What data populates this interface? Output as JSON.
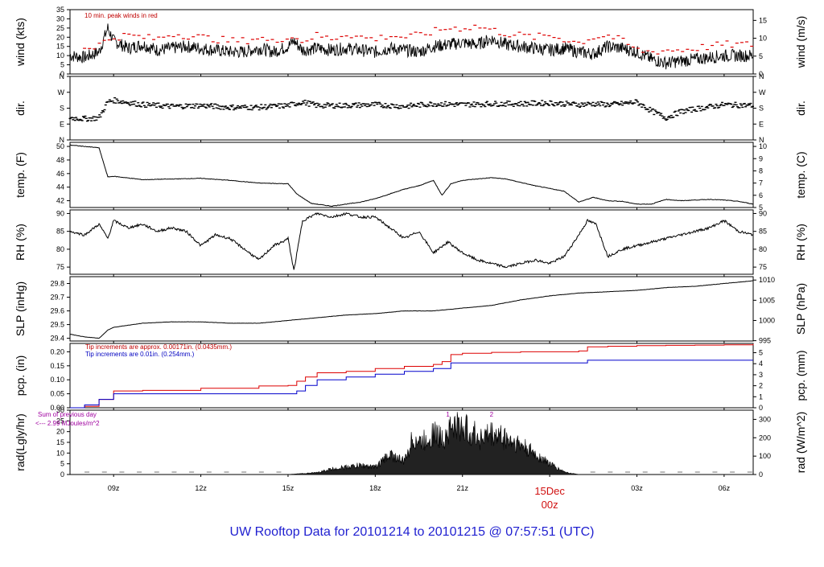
{
  "footer_title": "UW Rooftop Data for 20101214  to  20101215 @ 07:57:51  (UTC)",
  "date_label": "15Dec",
  "date_label_hour": "00z",
  "colors": {
    "wind_peak": "#dd0000",
    "precip_tip_small": "#dd0000",
    "precip_tip_large": "#0000cc",
    "annotation": "#a000a0",
    "footer": "#1f1fd0"
  },
  "time_axis": {
    "hours_span": [
      7.5,
      31.0
    ],
    "ticks": [
      {
        "hour": 9,
        "label": "09z"
      },
      {
        "hour": 12,
        "label": "12z"
      },
      {
        "hour": 15,
        "label": "15z"
      },
      {
        "hour": 18,
        "label": "18z"
      },
      {
        "hour": 21,
        "label": "21z"
      },
      {
        "hour": 24,
        "label": ""
      },
      {
        "hour": 27,
        "label": "03z"
      },
      {
        "hour": 30,
        "label": "06z"
      }
    ]
  },
  "chart_data": [
    {
      "type": "line",
      "id": "wind",
      "ylabel_left": "wind (kts)",
      "ylabel_right": "wind (m/s)",
      "annotation": "10 min. peak winds in red",
      "ylim": [
        0,
        35
      ],
      "yticks_left": [
        0,
        5,
        10,
        15,
        20,
        25,
        30,
        35
      ],
      "yticks_right": [
        0,
        5,
        10,
        15
      ],
      "series": [
        {
          "x": [
            7.5,
            8.0,
            8.5,
            8.8,
            9.0,
            9.5,
            10.0,
            10.5,
            11.0,
            11.5,
            12.0,
            12.5,
            13.0,
            13.5,
            14.0,
            14.5,
            15.0,
            15.2,
            15.5,
            16.0,
            16.5,
            17.0,
            17.5,
            18.0,
            18.5,
            19.0,
            19.5,
            20.0,
            20.5,
            21.0,
            21.5,
            22.0,
            22.5,
            23.0,
            23.5,
            24.0,
            24.5,
            25.0,
            25.5,
            26.0,
            26.5,
            27.0,
            27.5,
            28.0,
            28.5,
            29.0,
            29.5,
            30.0,
            30.5,
            31.0
          ],
          "values": [
            10,
            9,
            12,
            25,
            18,
            14,
            16,
            13,
            14,
            15,
            14,
            13,
            12,
            12,
            14,
            12,
            15,
            18,
            13,
            14,
            13,
            14,
            13,
            12,
            14,
            13,
            12,
            15,
            16,
            17,
            16,
            19,
            16,
            15,
            14,
            13,
            14,
            12,
            11,
            15,
            14,
            12,
            8,
            6,
            7,
            8,
            9,
            10,
            10,
            10
          ]
        },
        {
          "name": "10 min. peak winds",
          "x": [
            8.0,
            8.5,
            9.0,
            9.5,
            10.0,
            10.5,
            11.0,
            11.5,
            12.0,
            12.5,
            13.0,
            13.5,
            14.0,
            14.5,
            15.0,
            15.5,
            16.0,
            16.5,
            17.0,
            17.5,
            18.0,
            18.5,
            19.0,
            19.5,
            20.0,
            20.5,
            21.0,
            21.5,
            22.0,
            22.5,
            23.0,
            23.5,
            24.0,
            24.5,
            25.0,
            25.5,
            26.0,
            26.5,
            27.0,
            27.5,
            28.0,
            28.5,
            29.0,
            29.5,
            30.0,
            30.5,
            31.0
          ],
          "values": [
            14,
            16,
            20,
            21,
            20,
            19,
            22,
            21,
            20,
            19,
            18,
            18,
            20,
            17,
            21,
            18,
            21,
            19,
            22,
            20,
            19,
            21,
            20,
            21,
            23,
            25,
            25,
            26,
            24,
            22,
            21,
            20,
            21,
            19,
            17,
            20,
            21,
            18,
            13,
            12,
            13,
            13,
            14,
            15,
            16,
            16,
            16
          ]
        }
      ]
    },
    {
      "type": "scatter",
      "id": "dir",
      "ylabel_left": "dir.",
      "ylabel_right": "dir.",
      "yticks_left": [
        "N",
        "E",
        "S",
        "W",
        "N"
      ],
      "yticks_right": [
        "N",
        "E",
        "S",
        "W",
        "N"
      ],
      "ylim": [
        0,
        360
      ],
      "series": [
        {
          "x": [
            7.5,
            8.0,
            8.5,
            8.8,
            9.0,
            10.0,
            11.0,
            12.0,
            13.0,
            14.0,
            15.0,
            15.5,
            16.0,
            17.0,
            18.0,
            19.0,
            20.0,
            21.0,
            22.0,
            23.0,
            24.0,
            25.0,
            25.5,
            26.0,
            26.5,
            27.0,
            27.5,
            28.0,
            28.5,
            29.0,
            30.0,
            31.0
          ],
          "values": [
            125,
            120,
            125,
            215,
            225,
            200,
            190,
            195,
            185,
            185,
            195,
            215,
            195,
            195,
            200,
            190,
            205,
            200,
            205,
            205,
            210,
            200,
            205,
            200,
            205,
            215,
            165,
            125,
            160,
            175,
            200,
            195
          ]
        }
      ]
    },
    {
      "type": "line",
      "id": "temp",
      "ylabel_left": "temp. (F)",
      "ylabel_right": "temp. (C)",
      "ylim": [
        41,
        50.6
      ],
      "yticks_left": [
        42,
        44,
        46,
        48,
        50
      ],
      "yticks_right": [
        5,
        6,
        7,
        8,
        9,
        10
      ],
      "series": [
        {
          "x": [
            7.5,
            8.0,
            8.5,
            8.8,
            9.0,
            10.0,
            11.0,
            12.0,
            13.0,
            14.0,
            15.0,
            15.3,
            15.8,
            16.5,
            17.0,
            17.5,
            18.0,
            18.5,
            19.0,
            19.5,
            20.0,
            20.3,
            20.6,
            21.0,
            21.5,
            22.0,
            22.5,
            23.0,
            23.5,
            24.0,
            24.5,
            25.0,
            25.5,
            26.0,
            26.5,
            27.0,
            27.5,
            28.0,
            28.5,
            29.0,
            29.5,
            30.0,
            30.5,
            31.0
          ],
          "values": [
            50.2,
            50.0,
            49.8,
            45.5,
            45.6,
            45.1,
            45.2,
            45.3,
            45.0,
            44.6,
            44.5,
            43.0,
            41.6,
            41.2,
            41.5,
            41.8,
            42.3,
            43.0,
            43.7,
            44.2,
            45.0,
            42.8,
            44.5,
            45.0,
            45.2,
            45.4,
            45.2,
            44.7,
            44.2,
            43.8,
            43.4,
            41.8,
            42.5,
            42.0,
            41.9,
            41.5,
            41.5,
            42.2,
            42.0,
            42.1,
            42.2,
            42.1,
            41.9,
            41.5
          ]
        }
      ]
    },
    {
      "type": "line",
      "id": "rh",
      "ylabel_left": "RH (%)",
      "ylabel_right": "RH (%)",
      "ylim": [
        73,
        91
      ],
      "yticks_left": [
        75,
        80,
        85,
        90
      ],
      "yticks_right": [
        75,
        80,
        85,
        90
      ],
      "series": [
        {
          "x": [
            7.5,
            8.0,
            8.5,
            8.8,
            9.0,
            9.5,
            10.0,
            10.5,
            11.0,
            11.5,
            12.0,
            12.5,
            13.0,
            13.5,
            14.0,
            14.5,
            14.8,
            15.0,
            15.2,
            15.5,
            16.0,
            16.5,
            17.0,
            17.5,
            18.0,
            18.5,
            19.0,
            19.5,
            20.0,
            20.5,
            21.0,
            21.5,
            22.0,
            22.5,
            23.0,
            23.5,
            24.0,
            24.5,
            25.0,
            25.3,
            25.6,
            26.0,
            26.5,
            27.0,
            27.5,
            28.0,
            28.5,
            29.0,
            29.5,
            30.0,
            30.5,
            31.0
          ],
          "values": [
            85,
            84,
            87,
            83,
            88,
            86,
            87,
            85,
            86,
            85,
            81,
            84,
            83,
            80,
            77,
            81,
            82,
            83,
            74,
            88,
            90,
            89,
            90,
            89,
            89,
            86,
            83,
            85,
            79,
            82,
            79,
            77,
            76,
            75,
            76,
            77,
            76,
            78,
            84,
            88,
            87,
            78,
            80,
            81,
            82,
            83,
            84,
            85,
            86,
            88,
            85,
            84
          ]
        }
      ]
    },
    {
      "type": "line",
      "id": "slp",
      "ylabel_left": "SLP (inHg)",
      "ylabel_right": "SLP (hPa)",
      "ylim": [
        29.38,
        29.85
      ],
      "yticks_left": [
        29.4,
        29.5,
        29.6,
        29.7,
        29.8
      ],
      "yticks_right": [
        995,
        1000,
        1005,
        1010
      ],
      "series": [
        {
          "x": [
            7.5,
            8.0,
            8.5,
            8.8,
            9.0,
            10.0,
            11.0,
            12.0,
            13.0,
            14.0,
            15.0,
            16.0,
            17.0,
            18.0,
            19.0,
            20.0,
            21.0,
            22.0,
            23.0,
            24.0,
            25.0,
            26.0,
            27.0,
            28.0,
            29.0,
            30.0,
            31.0
          ],
          "values": [
            29.43,
            29.41,
            29.4,
            29.46,
            29.48,
            29.51,
            29.52,
            29.52,
            29.51,
            29.51,
            29.53,
            29.55,
            29.57,
            29.58,
            29.6,
            29.6,
            29.62,
            29.64,
            29.68,
            29.71,
            29.73,
            29.74,
            29.75,
            29.77,
            29.78,
            29.8,
            29.82
          ]
        }
      ]
    },
    {
      "type": "line",
      "id": "pcp",
      "ylabel_left": "pcp. (in)",
      "ylabel_right": "pcp. (mm)",
      "ylim": [
        0,
        0.23
      ],
      "yticks_left": [
        0.0,
        0.05,
        0.1,
        0.15,
        0.2
      ],
      "yticks_right": [
        0,
        1,
        2,
        3,
        4,
        5
      ],
      "legend": [
        "Tip increments are approx. 0.00171in. (0.0435mm.)",
        "Tip increments are 0.01in. (0.254mm.)"
      ],
      "series": [
        {
          "name": "Tip increments are approx. 0.00171in. (0.0435mm.)",
          "x": [
            7.5,
            8.0,
            8.5,
            9.0,
            10.0,
            12.0,
            14.0,
            15.0,
            15.3,
            15.6,
            16.0,
            17.0,
            18.0,
            19.0,
            20.0,
            20.3,
            20.6,
            21.0,
            22.0,
            23.0,
            24.0,
            25.0,
            25.3,
            26.0,
            27.0,
            28.0,
            29.0,
            30.0,
            31.0
          ],
          "values": [
            0,
            0.005,
            0.03,
            0.06,
            0.062,
            0.07,
            0.078,
            0.08,
            0.095,
            0.11,
            0.125,
            0.13,
            0.14,
            0.148,
            0.155,
            0.165,
            0.19,
            0.195,
            0.198,
            0.2,
            0.2,
            0.203,
            0.218,
            0.22,
            0.222,
            0.223,
            0.224,
            0.225,
            0.228
          ]
        },
        {
          "name": "Tip increments are 0.01in. (0.254mm.)",
          "x": [
            7.5,
            8.0,
            8.5,
            9.0,
            10.0,
            12.0,
            14.0,
            15.0,
            15.3,
            15.6,
            16.0,
            17.0,
            18.0,
            19.0,
            20.0,
            20.3,
            20.6,
            21.0,
            22.0,
            23.0,
            24.0,
            25.0,
            25.3,
            26.0,
            27.0,
            28.0,
            29.0,
            30.0,
            31.0
          ],
          "values": [
            0,
            0.01,
            0.03,
            0.05,
            0.05,
            0.05,
            0.05,
            0.05,
            0.06,
            0.08,
            0.1,
            0.11,
            0.12,
            0.13,
            0.14,
            0.14,
            0.16,
            0.16,
            0.16,
            0.16,
            0.16,
            0.16,
            0.17,
            0.17,
            0.17,
            0.17,
            0.17,
            0.17,
            0.17
          ]
        }
      ]
    },
    {
      "type": "area",
      "id": "rad",
      "ylabel_left": "rad(Lgly/hr)",
      "ylabel_right": "rad (W/m^2)",
      "ylim": [
        0,
        30
      ],
      "yticks_left": [
        0,
        5,
        10,
        15,
        20,
        25,
        30
      ],
      "yticks_right": [
        0,
        100,
        200,
        300
      ],
      "annotation_lines": [
        "Sum of previous day",
        "<--- 2.99 MJoules/m^2"
      ],
      "markers": [
        {
          "hour": 20.5,
          "label": "1"
        },
        {
          "hour": 22.0,
          "label": "2"
        }
      ],
      "series": [
        {
          "x": [
            7.5,
            15.0,
            16.0,
            16.5,
            17.0,
            17.5,
            18.0,
            18.5,
            19.0,
            19.3,
            19.6,
            20.0,
            20.3,
            20.6,
            21.0,
            21.3,
            21.6,
            22.0,
            22.3,
            22.6,
            23.0,
            23.3,
            23.6,
            24.0,
            24.3,
            24.6,
            25.0,
            31.0
          ],
          "values": [
            0,
            0,
            1,
            3,
            4,
            5,
            4,
            11,
            7,
            20,
            17,
            23,
            19,
            26,
            26,
            23,
            20,
            22,
            21,
            19,
            16,
            13,
            10,
            6,
            3,
            1,
            0,
            0
          ]
        }
      ]
    }
  ]
}
